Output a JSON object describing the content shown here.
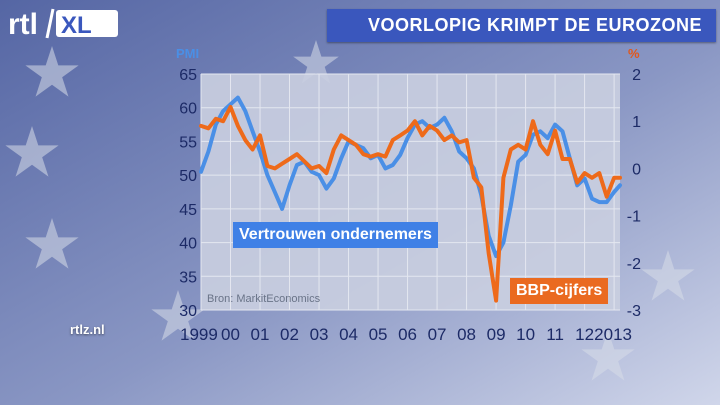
{
  "brand": {
    "logo_text": "rtl XL",
    "site_url": "rtlz.nl"
  },
  "headline": "VOORLOPIG KRIMPT DE EUROZONE",
  "colors": {
    "pmi_line": "#4a8fe6",
    "gdp_line": "#ee6a1a",
    "headline_bg": "#3a57bd",
    "left_unit": "#4a8fe6",
    "right_unit": "#e2571a"
  },
  "chart_data": {
    "type": "line",
    "left_axis_label": "PMI",
    "right_axis_label": "%",
    "left_ylim": [
      30,
      65
    ],
    "right_ylim": [
      -3,
      2
    ],
    "left_ticks": [
      "65",
      "60",
      "55",
      "50",
      "45",
      "40",
      "35",
      "30"
    ],
    "right_ticks": [
      "2",
      "1",
      "0",
      "-1",
      "-2",
      "-3"
    ],
    "x_ticks": [
      "1999",
      "00",
      "01",
      "02",
      "03",
      "04",
      "05",
      "06",
      "07",
      "08",
      "09",
      "10",
      "11",
      "12",
      "2013"
    ],
    "source": "Bron: MarkitEconomics",
    "grid": true,
    "series": [
      {
        "name": "Vertrouwen ondernemers",
        "axis": "left",
        "points": [
          [
            1999.0,
            50.5
          ],
          [
            1999.25,
            53.5
          ],
          [
            1999.5,
            57.5
          ],
          [
            1999.75,
            59.5
          ],
          [
            2000.0,
            60.5
          ],
          [
            2000.25,
            61.5
          ],
          [
            2000.5,
            59.5
          ],
          [
            2000.75,
            56.5
          ],
          [
            2001.0,
            53.5
          ],
          [
            2001.25,
            50.0
          ],
          [
            2001.5,
            47.5
          ],
          [
            2001.75,
            45.0
          ],
          [
            2002.0,
            48.5
          ],
          [
            2002.25,
            51.5
          ],
          [
            2002.5,
            52.0
          ],
          [
            2002.75,
            50.5
          ],
          [
            2003.0,
            50.0
          ],
          [
            2003.25,
            48.0
          ],
          [
            2003.5,
            49.5
          ],
          [
            2003.75,
            52.5
          ],
          [
            2004.0,
            55.0
          ],
          [
            2004.25,
            54.5
          ],
          [
            2004.5,
            54.0
          ],
          [
            2004.75,
            52.5
          ],
          [
            2005.0,
            53.0
          ],
          [
            2005.25,
            51.0
          ],
          [
            2005.5,
            51.5
          ],
          [
            2005.75,
            53.0
          ],
          [
            2006.0,
            55.5
          ],
          [
            2006.25,
            57.5
          ],
          [
            2006.5,
            58.0
          ],
          [
            2006.75,
            57.0
          ],
          [
            2007.0,
            57.5
          ],
          [
            2007.25,
            58.5
          ],
          [
            2007.5,
            56.5
          ],
          [
            2007.75,
            53.5
          ],
          [
            2008.0,
            52.5
          ],
          [
            2008.25,
            51.0
          ],
          [
            2008.5,
            47.0
          ],
          [
            2008.75,
            41.0
          ],
          [
            2009.0,
            38.0
          ],
          [
            2009.25,
            40.0
          ],
          [
            2009.5,
            45.5
          ],
          [
            2009.75,
            52.0
          ],
          [
            2010.0,
            53.0
          ],
          [
            2010.25,
            56.0
          ],
          [
            2010.5,
            56.5
          ],
          [
            2010.75,
            55.5
          ],
          [
            2011.0,
            57.5
          ],
          [
            2011.25,
            56.5
          ],
          [
            2011.5,
            52.5
          ],
          [
            2011.75,
            48.5
          ],
          [
            2012.0,
            49.5
          ],
          [
            2012.25,
            46.5
          ],
          [
            2012.5,
            46.0
          ],
          [
            2012.75,
            46.0
          ],
          [
            2013.0,
            47.5
          ],
          [
            2013.2,
            48.5
          ]
        ]
      },
      {
        "name": "BBP-cijfers",
        "axis": "right",
        "points": [
          [
            1999.0,
            0.9
          ],
          [
            1999.25,
            0.85
          ],
          [
            1999.5,
            1.05
          ],
          [
            1999.75,
            1.0
          ],
          [
            2000.0,
            1.3
          ],
          [
            2000.25,
            0.9
          ],
          [
            2000.5,
            0.6
          ],
          [
            2000.75,
            0.4
          ],
          [
            2001.0,
            0.7
          ],
          [
            2001.25,
            0.05
          ],
          [
            2001.5,
            0.0
          ],
          [
            2001.75,
            0.1
          ],
          [
            2002.0,
            0.2
          ],
          [
            2002.25,
            0.3
          ],
          [
            2002.5,
            0.15
          ],
          [
            2002.75,
            0.0
          ],
          [
            2003.0,
            0.05
          ],
          [
            2003.25,
            -0.1
          ],
          [
            2003.5,
            0.4
          ],
          [
            2003.75,
            0.7
          ],
          [
            2004.0,
            0.6
          ],
          [
            2004.25,
            0.5
          ],
          [
            2004.5,
            0.3
          ],
          [
            2004.75,
            0.25
          ],
          [
            2005.0,
            0.3
          ],
          [
            2005.25,
            0.25
          ],
          [
            2005.5,
            0.6
          ],
          [
            2005.75,
            0.7
          ],
          [
            2006.0,
            0.8
          ],
          [
            2006.25,
            1.0
          ],
          [
            2006.5,
            0.7
          ],
          [
            2006.75,
            0.9
          ],
          [
            2007.0,
            0.8
          ],
          [
            2007.25,
            0.6
          ],
          [
            2007.5,
            0.7
          ],
          [
            2007.75,
            0.55
          ],
          [
            2008.0,
            0.6
          ],
          [
            2008.25,
            -0.2
          ],
          [
            2008.5,
            -0.4
          ],
          [
            2008.75,
            -1.8
          ],
          [
            2009.0,
            -2.8
          ],
          [
            2009.25,
            -0.2
          ],
          [
            2009.5,
            0.4
          ],
          [
            2009.75,
            0.5
          ],
          [
            2010.0,
            0.4
          ],
          [
            2010.25,
            1.0
          ],
          [
            2010.5,
            0.5
          ],
          [
            2010.75,
            0.3
          ],
          [
            2011.0,
            0.8
          ],
          [
            2011.25,
            0.2
          ],
          [
            2011.5,
            0.2
          ],
          [
            2011.75,
            -0.3
          ],
          [
            2012.0,
            -0.1
          ],
          [
            2012.25,
            -0.2
          ],
          [
            2012.5,
            -0.1
          ],
          [
            2012.75,
            -0.6
          ],
          [
            2013.0,
            -0.2
          ],
          [
            2013.2,
            -0.2
          ]
        ]
      }
    ]
  }
}
